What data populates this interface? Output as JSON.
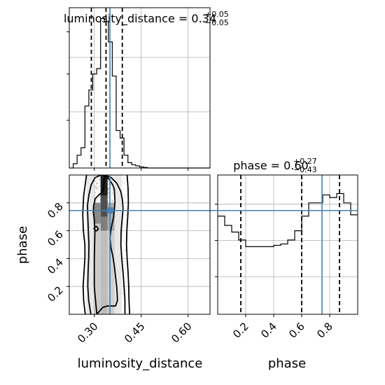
{
  "colors": {
    "truth": "#4682b4",
    "hist": "#000000",
    "grid": "#b0b0b0",
    "density_dark": "#000000",
    "points": "#8c8c8c"
  },
  "chart_data": [
    {
      "panel": "luminosity_distance-marginal",
      "type": "step-histogram",
      "title": {
        "param": "luminosity_distance",
        "value": "0.34",
        "plus": "+0.05",
        "minus": "−0.05"
      },
      "x_range": [
        0.22,
        0.67
      ],
      "x_ticks": [
        0.3,
        0.45,
        0.6
      ],
      "bin_edges": [
        0.22,
        0.2325,
        0.245,
        0.2575,
        0.27,
        0.2825,
        0.295,
        0.3075,
        0.32,
        0.3325,
        0.345,
        0.3575,
        0.37,
        0.3825,
        0.395,
        0.4075,
        0.42,
        0.4325,
        0.445,
        0.4575,
        0.47,
        0.4825,
        0.495,
        0.5075,
        0.52,
        0.5325,
        0.545,
        0.5575,
        0.57,
        0.5825,
        0.595,
        0.6075,
        0.62,
        0.6325,
        0.645,
        0.6575,
        0.67
      ],
      "counts": [
        0,
        4,
        12,
        19,
        58,
        73,
        88,
        93,
        140,
        137,
        118,
        86,
        35,
        28,
        12,
        5,
        3,
        2,
        1,
        0.5,
        0,
        0,
        0,
        0,
        0,
        0,
        0,
        0,
        0,
        0,
        0,
        0,
        0,
        0,
        0,
        0
      ],
      "y_max": 150,
      "quantiles": [
        0.2905,
        0.3375,
        0.3895
      ],
      "truth": 0.35
    },
    {
      "panel": "phase-marginal",
      "type": "step-histogram",
      "title": {
        "param": "phase",
        "value": "0.60",
        "plus": "+0.27",
        "minus": "−0.43"
      },
      "x_range": [
        0.0,
        1.0
      ],
      "x_ticks": [
        0.2,
        0.4,
        0.6,
        0.8
      ],
      "bin_edges": [
        0.0,
        0.05,
        0.1,
        0.15,
        0.2,
        0.25,
        0.3,
        0.35,
        0.4,
        0.45,
        0.5,
        0.55,
        0.6,
        0.65,
        0.7,
        0.75,
        0.8,
        0.85,
        0.9,
        0.95,
        1.0
      ],
      "counts": [
        74,
        67,
        62,
        56,
        51,
        51,
        51,
        51,
        52,
        53,
        56,
        63,
        74,
        84,
        84,
        90,
        88,
        91,
        84,
        75
      ],
      "y_max": 105,
      "quantiles": [
        0.165,
        0.6,
        0.87
      ],
      "truth": 0.745
    },
    {
      "panel": "luminosity_distance-vs-phase",
      "type": "2d-density-contour",
      "x_label": "luminosity_distance",
      "y_label": "phase",
      "x_range": [
        0.22,
        0.67
      ],
      "y_range": [
        0.0,
        1.0
      ],
      "x_ticks": [
        0.3,
        0.45,
        0.6
      ],
      "y_ticks": [
        0.2,
        0.4,
        0.6,
        0.8
      ],
      "truth": {
        "luminosity_distance": 0.35,
        "phase": 0.745
      },
      "contours": [
        {
          "level": 1,
          "x": [
            0.308,
            0.306,
            0.303,
            0.3,
            0.3,
            0.3,
            0.301,
            0.302,
            0.3,
            0.297,
            0.298,
            0.303,
            0.316,
            0.327,
            0.33,
            0.331,
            0.334,
            0.34,
            0.35,
            0.359,
            0.364,
            0.365,
            0.366,
            0.362,
            0.354,
            0.35,
            0.353,
            0.359,
            0.364,
            0.368,
            0.372,
            0.374,
            0.368,
            0.357,
            0.342,
            0.327,
            0.308
          ],
          "y": [
            0.0,
            0.05,
            0.12,
            0.2,
            0.3,
            0.4,
            0.5,
            0.6,
            0.68,
            0.73,
            0.78,
            0.83,
            0.86,
            0.88,
            0.92,
            0.96,
            0.99,
            0.99,
            0.96,
            0.93,
            0.9,
            0.86,
            0.8,
            0.7,
            0.62,
            0.55,
            0.48,
            0.42,
            0.35,
            0.27,
            0.19,
            0.1,
            0.06,
            0.06,
            0.06,
            0.05,
            0.0
          ]
        },
        {
          "level": 2,
          "x": [
            0.289,
            0.282,
            0.279,
            0.28,
            0.282,
            0.283,
            0.281,
            0.279,
            0.278,
            0.283,
            0.29,
            0.302,
            0.32,
            0.336,
            0.345,
            0.355,
            0.372,
            0.385,
            0.39,
            0.392,
            0.389,
            0.386,
            0.385,
            0.388,
            0.392,
            0.395,
            0.398,
            0.398
          ],
          "y": [
            0.0,
            0.1,
            0.2,
            0.3,
            0.4,
            0.5,
            0.6,
            0.7,
            0.78,
            0.86,
            0.93,
            0.98,
            1.0,
            1.0,
            0.99,
            0.98,
            0.94,
            0.88,
            0.82,
            0.76,
            0.68,
            0.6,
            0.5,
            0.4,
            0.3,
            0.2,
            0.1,
            0.0
          ]
        },
        {
          "level": 3,
          "x": [
            0.271,
            0.266,
            0.264,
            0.267,
            0.27,
            0.27,
            0.265,
            0.263,
            0.266,
            0.275
          ],
          "y": [
            0.0,
            0.1,
            0.2,
            0.3,
            0.4,
            0.5,
            0.6,
            0.72,
            0.85,
            1.0
          ]
        },
        {
          "level": 3,
          "x": [
            0.405,
            0.408,
            0.409,
            0.407,
            0.404,
            0.403,
            0.405,
            0.408,
            0.41,
            0.411,
            0.413
          ],
          "y": [
            1.0,
            0.9,
            0.8,
            0.7,
            0.6,
            0.5,
            0.4,
            0.3,
            0.2,
            0.1,
            0.0
          ]
        },
        {
          "level": 4,
          "x": [
            0.298,
            0.303,
            0.308,
            0.313,
            0.308,
            0.3
          ],
          "y": [
            0.61,
            0.63,
            0.63,
            0.61,
            0.6,
            0.6
          ]
        }
      ],
      "density_cells": [
        {
          "x0": 0.32,
          "x1": 0.3425,
          "y0": 0.85,
          "y1": 1.0,
          "shade": 0.95
        },
        {
          "x0": 0.32,
          "x1": 0.3425,
          "y0": 0.7,
          "y1": 0.85,
          "shade": 0.75
        },
        {
          "x0": 0.2975,
          "x1": 0.32,
          "y0": 0.65,
          "y1": 0.8,
          "shade": 0.5
        },
        {
          "x0": 0.32,
          "x1": 0.3425,
          "y0": 0.6,
          "y1": 0.7,
          "shade": 0.55
        },
        {
          "x0": 0.3425,
          "x1": 0.365,
          "y0": 0.6,
          "y1": 0.8,
          "shade": 0.35
        },
        {
          "x0": 0.2975,
          "x1": 0.32,
          "y0": 0.0,
          "y1": 0.65,
          "shade": 0.22
        },
        {
          "x0": 0.32,
          "x1": 0.3425,
          "y0": 0.0,
          "y1": 0.6,
          "shade": 0.28
        },
        {
          "x0": 0.3425,
          "x1": 0.365,
          "y0": 0.0,
          "y1": 0.6,
          "shade": 0.2
        },
        {
          "x0": 0.275,
          "x1": 0.2975,
          "y0": 0.0,
          "y1": 1.0,
          "shade": 0.1
        },
        {
          "x0": 0.365,
          "x1": 0.3875,
          "y0": 0.0,
          "y1": 1.0,
          "shade": 0.1
        }
      ]
    }
  ]
}
